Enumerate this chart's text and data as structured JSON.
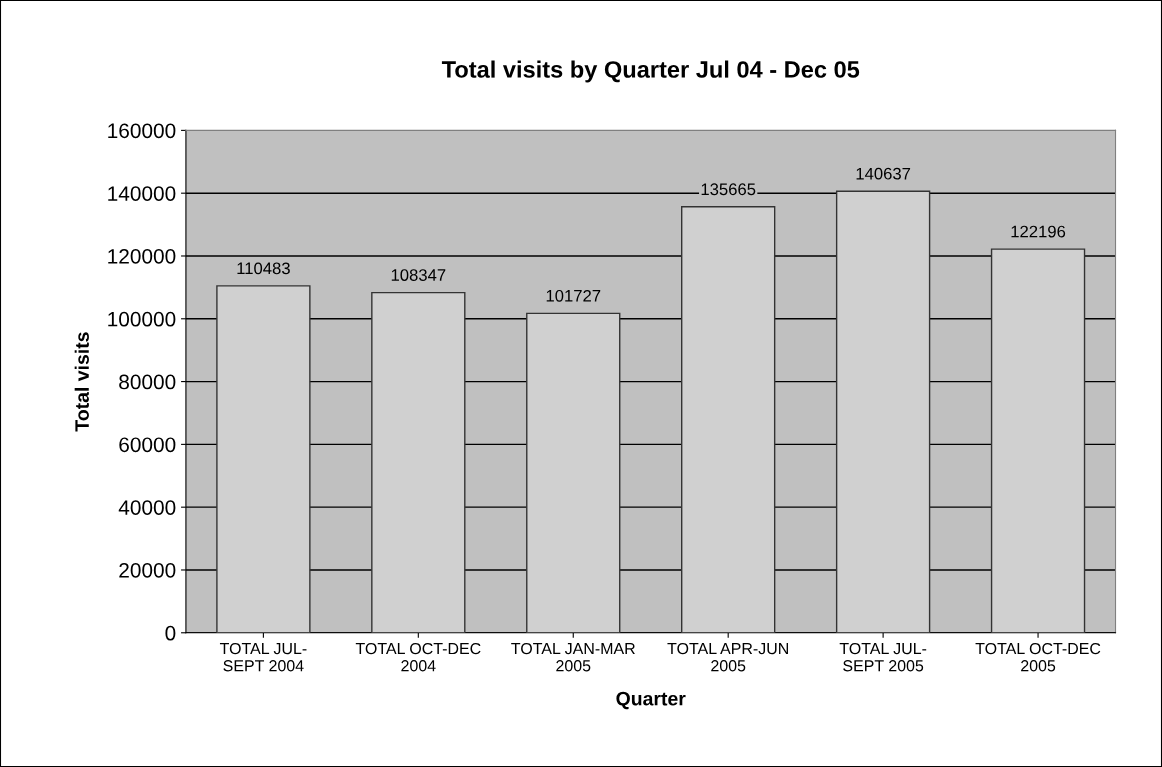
{
  "chart_data": {
    "type": "bar",
    "title": "Total visits by Quarter Jul 04 - Dec 05",
    "xlabel": "Quarter",
    "ylabel": "Total visits",
    "categories": [
      "TOTAL JUL-\nSEPT 2004",
      "TOTAL OCT-DEC\n2004",
      "TOTAL JAN-MAR\n2005",
      "TOTAL APR-JUN\n2005",
      "TOTAL JUL-\nSEPT 2005",
      "TOTAL OCT-DEC\n2005"
    ],
    "values": [
      110483,
      108347,
      101727,
      135665,
      140637,
      122196
    ],
    "color": "#d0d0d0",
    "ylim": [
      0,
      160000
    ],
    "yticks": [
      0,
      20000,
      40000,
      60000,
      80000,
      100000,
      120000,
      140000,
      160000
    ],
    "grid": "y",
    "data_labels": true
  }
}
